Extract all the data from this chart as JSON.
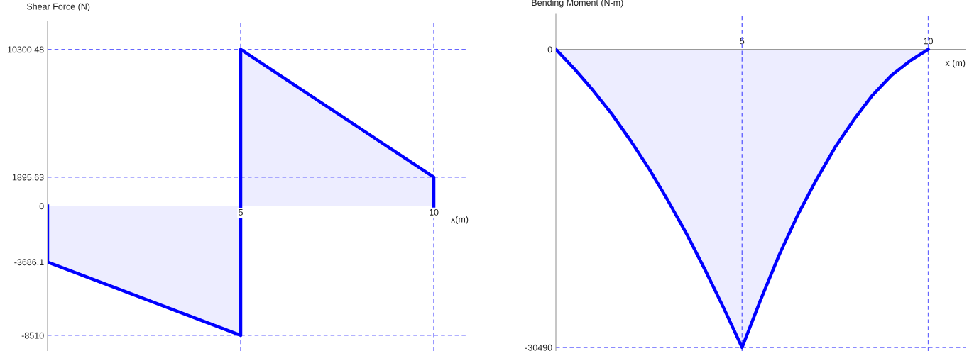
{
  "chart_data": [
    {
      "type": "area",
      "xlabel": "x(m)",
      "ylabel": "Shear Force (N)",
      "series": [
        {
          "color": "#0000ff",
          "x": [
            0,
            0,
            5,
            5,
            10,
            10
          ],
          "values": [
            0,
            -3686.1,
            -8510,
            10300.48,
            1895.63,
            0
          ]
        }
      ],
      "xlim": [
        0,
        10.9
      ],
      "ylim": [
        -9540,
        12150
      ],
      "xticks": [
        5,
        10
      ],
      "yticks": [
        -8510,
        -3686.1,
        0,
        1895.63,
        10300.48
      ],
      "ref_lines": [
        {
          "axis": "y",
          "value": 10300.48,
          "color": "#6666ff",
          "line_style": "dashed"
        },
        {
          "axis": "y",
          "value": 1895.63,
          "color": "#6666ff",
          "line_style": "dashed"
        },
        {
          "axis": "y",
          "value": -8510,
          "color": "#6666ff",
          "line_style": "dashed"
        },
        {
          "axis": "x",
          "value": 5,
          "color": "#6666ff",
          "line_style": "dashed"
        },
        {
          "axis": "x",
          "value": 10,
          "color": "#6666ff",
          "line_style": "dashed"
        }
      ]
    },
    {
      "type": "area",
      "xlabel": "x (m)",
      "ylabel": "Bending Moment (N-m)",
      "series": [
        {
          "color": "#0000ff",
          "x": [
            0,
            0.5,
            1,
            1.5,
            2,
            2.5,
            3,
            3.5,
            4,
            4.5,
            5,
            5.5,
            6,
            6.5,
            7,
            7.5,
            8,
            8.5,
            9,
            9.5,
            10
          ],
          "values": [
            0,
            -2000,
            -4200,
            -6600,
            -9300,
            -12200,
            -15400,
            -18800,
            -22500,
            -26400,
            -30490,
            -25600,
            -21000,
            -16900,
            -13300,
            -10000,
            -7200,
            -4700,
            -2700,
            -1200,
            0
          ]
        }
      ],
      "xlim": [
        0,
        11.0
      ],
      "ylim": [
        -30850,
        3600
      ],
      "xticks": [
        5,
        10
      ],
      "yticks": [
        -30490,
        0
      ],
      "ref_lines": [
        {
          "axis": "y",
          "value": -30490,
          "color": "#6666ff",
          "line_style": "dashed"
        },
        {
          "axis": "x",
          "value": 5,
          "color": "#6666ff",
          "line_style": "dashed"
        },
        {
          "axis": "x",
          "value": 10,
          "color": "#6666ff",
          "line_style": "dashed"
        }
      ]
    }
  ]
}
